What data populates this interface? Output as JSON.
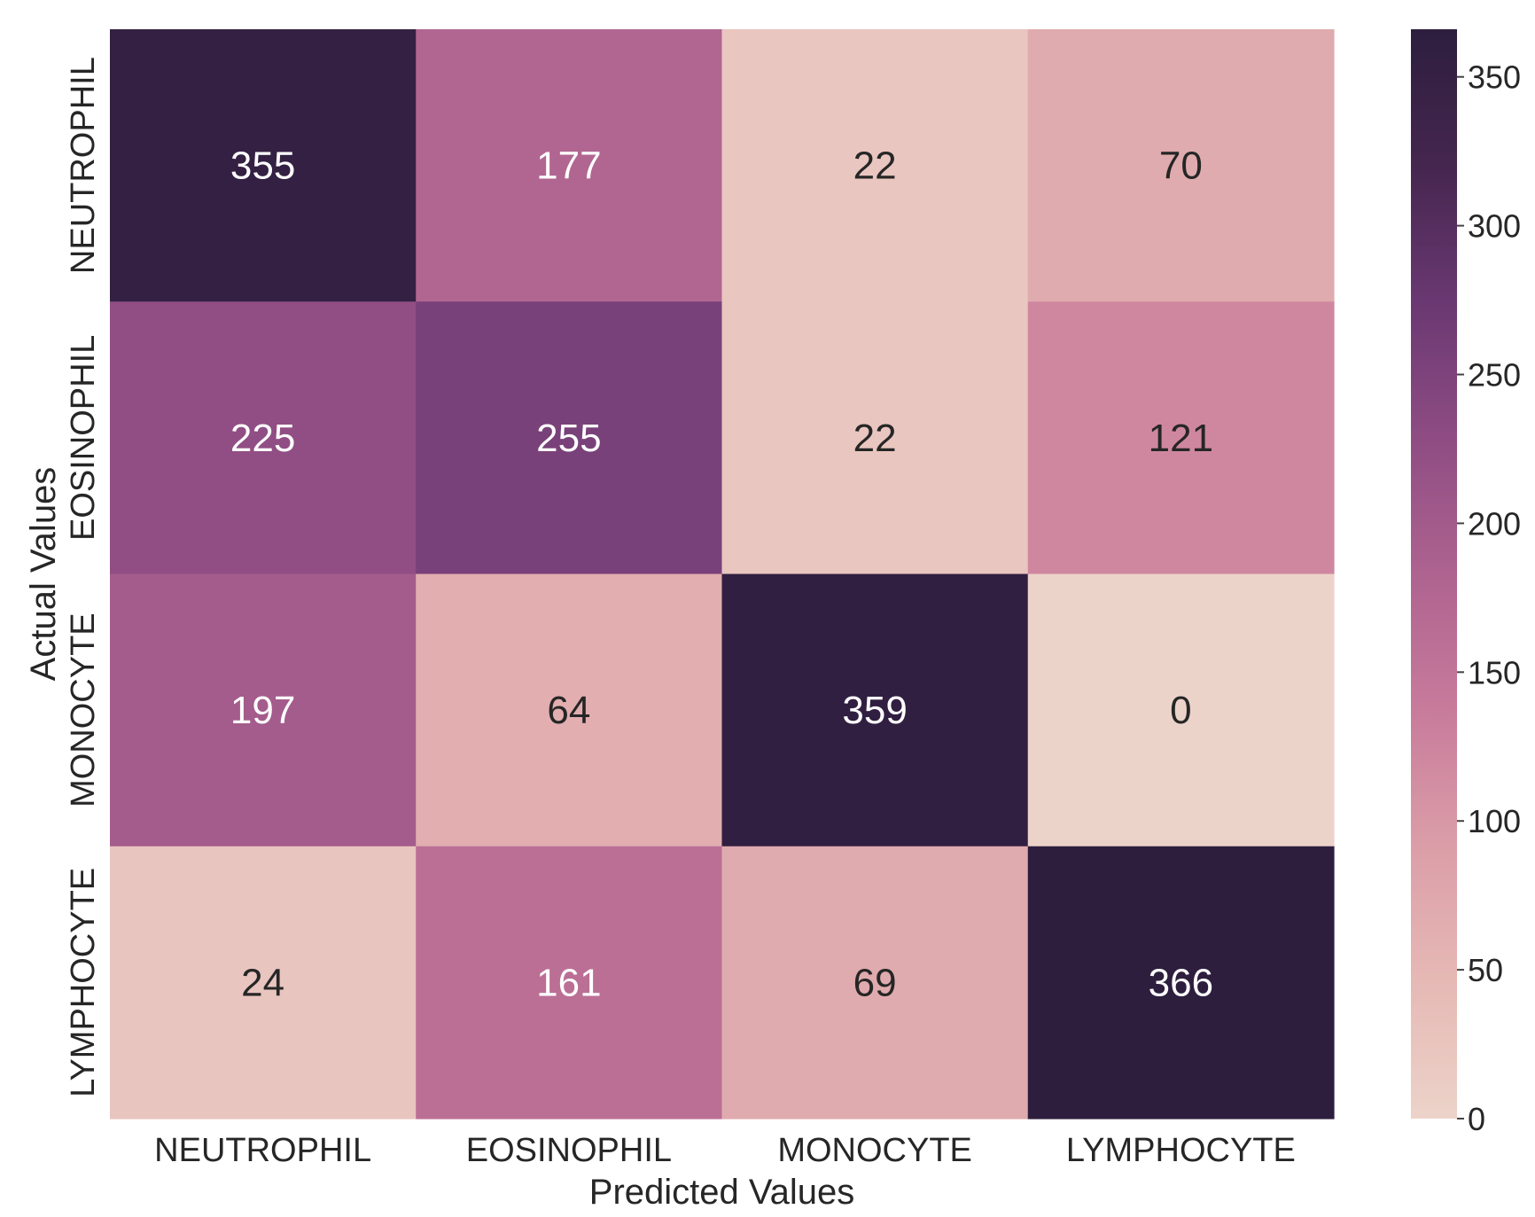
{
  "chart_data": {
    "type": "heatmap",
    "title": "",
    "xlabel": "Predicted Values",
    "ylabel": "Actual Values",
    "x_categories": [
      "NEUTROPHIL",
      "EOSINOPHIL",
      "MONOCYTE",
      "LYMPHOCYTE"
    ],
    "y_categories": [
      "NEUTROPHIL",
      "EOSINOPHIL",
      "MONOCYTE",
      "LYMPHOCYTE"
    ],
    "values": [
      [
        355,
        177,
        22,
        70
      ],
      [
        225,
        255,
        22,
        121
      ],
      [
        197,
        64,
        359,
        0
      ],
      [
        24,
        161,
        69,
        366
      ]
    ],
    "colorbar": {
      "range": [
        0,
        366
      ],
      "ticks": [
        0,
        50,
        100,
        150,
        200,
        250,
        300,
        350
      ],
      "placement": "right"
    },
    "colormap": [
      "#ecd3c9",
      "#e6b9b5",
      "#db9ea8",
      "#c87b9b",
      "#ae6390",
      "#8e4c83",
      "#6a3872",
      "#45264f",
      "#2d1e3e"
    ],
    "annotation_colors": {
      "light": "#ffffff",
      "dark": "#262626"
    },
    "grid": false
  }
}
